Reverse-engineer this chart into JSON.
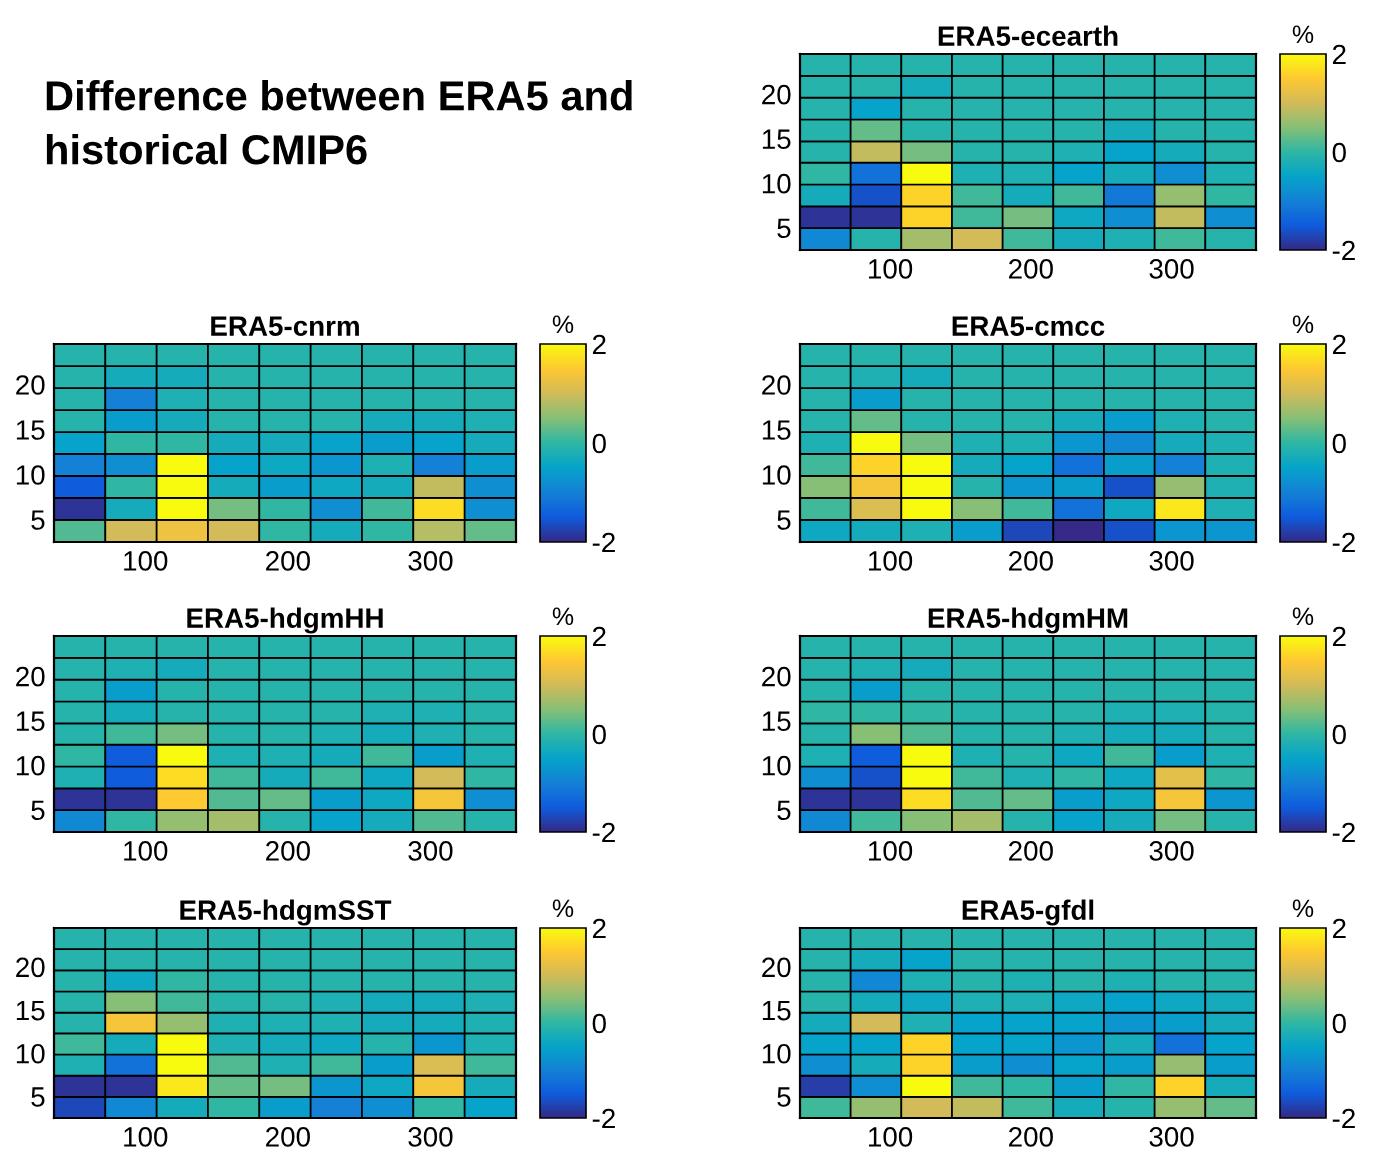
{
  "chart_data": [
    {
      "type": "other",
      "title": "Difference between ERA5 and\nhistorical CMIP6"
    },
    {
      "type": "heatmap",
      "title": "ERA5-ecearth",
      "clabel": "%",
      "x": [
        54,
        90,
        126,
        162,
        198,
        234,
        270,
        306,
        342
      ],
      "y": [
        23.3,
        20.8,
        18.4,
        15.9,
        13.5,
        11.1,
        8.6,
        6.2,
        3.7
      ],
      "xlim": [
        36,
        360
      ],
      "ylim": [
        2.5,
        24.5
      ],
      "xticks": [
        100,
        200,
        300
      ],
      "yticks": [
        5,
        10,
        15,
        20
      ],
      "clim": [
        -2,
        2
      ],
      "cticks": [
        -2,
        0,
        2
      ],
      "cells": [
        [
          -0.1,
          -0.1,
          -0.1,
          -0.1,
          -0.1,
          -0.1,
          -0.1,
          -0.1,
          -0.1
        ],
        [
          -0.1,
          -0.1,
          -0.3,
          -0.1,
          -0.1,
          -0.1,
          -0.1,
          -0.1,
          -0.1
        ],
        [
          -0.1,
          -0.5,
          -0.1,
          -0.1,
          -0.1,
          -0.1,
          -0.1,
          -0.1,
          -0.1
        ],
        [
          -0.1,
          0.3,
          -0.1,
          -0.1,
          -0.1,
          -0.1,
          -0.3,
          -0.1,
          -0.1
        ],
        [
          -0.1,
          0.9,
          0.4,
          -0.1,
          -0.1,
          -0.2,
          -0.5,
          -0.3,
          -0.1
        ],
        [
          0.0,
          -1.2,
          2.0,
          -0.2,
          -0.2,
          -0.5,
          -0.3,
          -0.8,
          -0.2
        ],
        [
          -0.3,
          -1.6,
          1.6,
          0.1,
          -0.3,
          0.1,
          -1.1,
          0.6,
          0.0
        ],
        [
          -1.9,
          -1.9,
          1.6,
          0.1,
          0.4,
          -0.4,
          -0.8,
          0.9,
          -0.8
        ],
        [
          -0.9,
          -0.1,
          0.7,
          1.0,
          0.1,
          -0.3,
          -0.2,
          0.1,
          -0.1
        ]
      ]
    },
    {
      "type": "heatmap",
      "title": "ERA5-cnrm",
      "clabel": "%",
      "x": [
        54,
        90,
        126,
        162,
        198,
        234,
        270,
        306,
        342
      ],
      "y": [
        23.3,
        20.8,
        18.4,
        15.9,
        13.5,
        11.1,
        8.6,
        6.2,
        3.7
      ],
      "xlim": [
        36,
        360
      ],
      "ylim": [
        2.5,
        24.5
      ],
      "xticks": [
        100,
        200,
        300
      ],
      "yticks": [
        5,
        10,
        15,
        20
      ],
      "clim": [
        -2,
        2
      ],
      "cticks": [
        -2,
        0,
        2
      ],
      "cells": [
        [
          -0.1,
          -0.1,
          -0.1,
          -0.1,
          -0.1,
          -0.1,
          -0.1,
          -0.1,
          -0.1
        ],
        [
          -0.1,
          -0.3,
          -0.3,
          -0.1,
          -0.1,
          -0.1,
          -0.1,
          -0.1,
          -0.1
        ],
        [
          -0.1,
          -1.0,
          -0.2,
          -0.1,
          -0.1,
          -0.1,
          -0.1,
          -0.1,
          -0.1
        ],
        [
          -0.1,
          -0.6,
          -0.3,
          -0.1,
          -0.1,
          -0.1,
          -0.3,
          -0.3,
          -0.2
        ],
        [
          -0.5,
          0.0,
          0.0,
          -0.3,
          -0.3,
          -0.5,
          -0.6,
          -0.5,
          -0.3
        ],
        [
          -1.0,
          -0.8,
          2.0,
          -0.5,
          -0.4,
          -0.7,
          -0.2,
          -1.0,
          -0.6
        ],
        [
          -1.5,
          0.0,
          2.0,
          -0.3,
          -0.6,
          -0.4,
          -0.3,
          0.9,
          -0.8
        ],
        [
          -1.9,
          -0.3,
          2.0,
          0.4,
          0.0,
          -0.8,
          0.1,
          1.7,
          -0.8
        ],
        [
          0.2,
          1.0,
          1.3,
          1.0,
          0.0,
          -0.3,
          0.0,
          0.8,
          0.3
        ]
      ]
    },
    {
      "type": "heatmap",
      "title": "ERA5-cmcc",
      "clabel": "%",
      "x": [
        54,
        90,
        126,
        162,
        198,
        234,
        270,
        306,
        342
      ],
      "y": [
        23.3,
        20.8,
        18.4,
        15.9,
        13.5,
        11.1,
        8.6,
        6.2,
        3.7
      ],
      "xlim": [
        36,
        360
      ],
      "ylim": [
        2.5,
        24.5
      ],
      "xticks": [
        100,
        200,
        300
      ],
      "yticks": [
        5,
        10,
        15,
        20
      ],
      "clim": [
        -2,
        2
      ],
      "cticks": [
        -2,
        0,
        2
      ],
      "cells": [
        [
          -0.1,
          -0.1,
          -0.1,
          -0.1,
          -0.1,
          -0.1,
          -0.1,
          -0.1,
          -0.1
        ],
        [
          -0.1,
          -0.2,
          -0.3,
          -0.1,
          -0.1,
          -0.1,
          -0.1,
          -0.1,
          -0.1
        ],
        [
          -0.1,
          -0.6,
          -0.1,
          -0.1,
          -0.1,
          -0.1,
          -0.1,
          -0.1,
          -0.1
        ],
        [
          -0.1,
          0.3,
          -0.1,
          -0.1,
          -0.1,
          -0.3,
          -0.6,
          -0.2,
          -0.1
        ],
        [
          -0.2,
          2.0,
          0.4,
          -0.2,
          -0.2,
          -0.7,
          -0.9,
          -0.3,
          -0.2
        ],
        [
          0.1,
          1.6,
          2.0,
          -0.3,
          -0.5,
          -1.2,
          -0.6,
          -1.0,
          -0.2
        ],
        [
          0.5,
          1.4,
          2.0,
          -0.1,
          -0.7,
          -0.6,
          -1.6,
          0.6,
          -0.2
        ],
        [
          0.1,
          1.1,
          2.0,
          0.5,
          0.1,
          -1.2,
          -0.4,
          1.8,
          -0.2
        ],
        [
          -0.4,
          -0.3,
          -0.2,
          -0.6,
          -1.7,
          -2.0,
          -1.6,
          -0.7,
          -0.7
        ]
      ]
    },
    {
      "type": "heatmap",
      "title": "ERA5-hdgmHH",
      "clabel": "%",
      "x": [
        54,
        90,
        126,
        162,
        198,
        234,
        270,
        306,
        342
      ],
      "y": [
        23.3,
        20.8,
        18.4,
        15.9,
        13.5,
        11.1,
        8.6,
        6.2,
        3.7
      ],
      "xlim": [
        36,
        360
      ],
      "ylim": [
        2.5,
        24.5
      ],
      "xticks": [
        100,
        200,
        300
      ],
      "yticks": [
        5,
        10,
        15,
        20
      ],
      "clim": [
        -2,
        2
      ],
      "cticks": [
        -2,
        0,
        2
      ],
      "cells": [
        [
          -0.1,
          -0.1,
          -0.1,
          -0.1,
          -0.1,
          -0.1,
          -0.1,
          -0.1,
          -0.1
        ],
        [
          -0.1,
          -0.2,
          -0.3,
          -0.1,
          -0.1,
          -0.1,
          -0.1,
          -0.1,
          -0.1
        ],
        [
          -0.1,
          -0.6,
          -0.1,
          -0.1,
          -0.1,
          -0.1,
          -0.1,
          -0.1,
          -0.1
        ],
        [
          -0.1,
          -0.3,
          -0.1,
          -0.1,
          -0.1,
          -0.1,
          -0.2,
          -0.2,
          -0.1
        ],
        [
          -0.1,
          0.1,
          0.4,
          -0.1,
          -0.1,
          -0.2,
          -0.3,
          -0.2,
          -0.1
        ],
        [
          0.0,
          -1.5,
          2.0,
          -0.2,
          -0.2,
          -0.3,
          0.1,
          -0.6,
          -0.2
        ],
        [
          -0.2,
          -1.5,
          1.7,
          0.1,
          -0.3,
          0.1,
          -0.4,
          1.0,
          0.0
        ],
        [
          -1.9,
          -1.9,
          1.5,
          0.2,
          0.3,
          -0.6,
          -0.4,
          1.4,
          -0.8
        ],
        [
          -0.9,
          0.0,
          0.6,
          0.7,
          -0.1,
          -0.5,
          -0.3,
          0.2,
          -0.1
        ]
      ]
    },
    {
      "type": "heatmap",
      "title": "ERA5-hdgmHM",
      "clabel": "%",
      "x": [
        54,
        90,
        126,
        162,
        198,
        234,
        270,
        306,
        342
      ],
      "y": [
        23.3,
        20.8,
        18.4,
        15.9,
        13.5,
        11.1,
        8.6,
        6.2,
        3.7
      ],
      "xlim": [
        36,
        360
      ],
      "ylim": [
        2.5,
        24.5
      ],
      "xticks": [
        100,
        200,
        300
      ],
      "yticks": [
        5,
        10,
        15,
        20
      ],
      "clim": [
        -2,
        2
      ],
      "cticks": [
        -2,
        0,
        2
      ],
      "cells": [
        [
          -0.1,
          -0.1,
          -0.1,
          -0.1,
          -0.1,
          -0.1,
          -0.1,
          -0.1,
          -0.1
        ],
        [
          -0.1,
          -0.2,
          -0.3,
          -0.1,
          -0.1,
          -0.1,
          -0.1,
          -0.1,
          -0.1
        ],
        [
          -0.1,
          -0.6,
          -0.1,
          -0.1,
          -0.1,
          -0.1,
          -0.1,
          -0.1,
          -0.1
        ],
        [
          0.0,
          0.0,
          0.0,
          -0.1,
          -0.1,
          -0.1,
          -0.2,
          -0.2,
          -0.1
        ],
        [
          -0.1,
          0.5,
          0.2,
          -0.1,
          -0.1,
          -0.2,
          -0.3,
          -0.3,
          -0.1
        ],
        [
          -0.2,
          -1.5,
          2.0,
          -0.2,
          -0.1,
          -0.4,
          0.1,
          -0.6,
          -0.2
        ],
        [
          -0.8,
          -1.6,
          2.0,
          0.1,
          -0.2,
          0.0,
          -0.4,
          1.2,
          0.0
        ],
        [
          -1.9,
          -1.9,
          1.7,
          0.2,
          0.3,
          -0.6,
          -0.4,
          1.4,
          -0.7
        ],
        [
          -0.9,
          0.1,
          0.5,
          0.7,
          -0.1,
          -0.5,
          -0.3,
          0.4,
          -0.1
        ]
      ]
    },
    {
      "type": "heatmap",
      "title": "ERA5-hdgmSST",
      "clabel": "%",
      "x": [
        54,
        90,
        126,
        162,
        198,
        234,
        270,
        306,
        342
      ],
      "y": [
        23.3,
        20.8,
        18.4,
        15.9,
        13.5,
        11.1,
        8.6,
        6.2,
        3.7
      ],
      "xlim": [
        36,
        360
      ],
      "ylim": [
        2.5,
        24.5
      ],
      "xticks": [
        100,
        200,
        300
      ],
      "yticks": [
        5,
        10,
        15,
        20
      ],
      "clim": [
        -2,
        2
      ],
      "cticks": [
        -2,
        0,
        2
      ],
      "cells": [
        [
          -0.1,
          -0.1,
          -0.1,
          -0.1,
          -0.1,
          -0.1,
          -0.1,
          -0.1,
          -0.1
        ],
        [
          -0.1,
          -0.1,
          -0.1,
          -0.1,
          -0.1,
          -0.1,
          -0.1,
          -0.1,
          -0.1
        ],
        [
          -0.1,
          -0.4,
          0.0,
          -0.1,
          -0.1,
          -0.1,
          -0.1,
          -0.1,
          -0.1
        ],
        [
          -0.1,
          0.5,
          0.1,
          -0.1,
          -0.1,
          -0.2,
          -0.3,
          -0.3,
          -0.2
        ],
        [
          -0.1,
          1.4,
          0.6,
          -0.2,
          -0.2,
          -0.2,
          -0.3,
          -0.3,
          -0.2
        ],
        [
          0.1,
          -0.3,
          2.0,
          -0.2,
          -0.3,
          -0.4,
          -0.1,
          -0.7,
          -0.2
        ],
        [
          -0.2,
          -1.2,
          2.0,
          0.2,
          -0.2,
          0.1,
          -0.6,
          1.1,
          0.1
        ],
        [
          -1.9,
          -1.9,
          1.8,
          0.3,
          0.4,
          -0.7,
          -0.4,
          1.4,
          -0.3
        ],
        [
          -1.7,
          -0.9,
          -0.3,
          0.0,
          -0.6,
          -1.0,
          -0.8,
          0.0,
          -0.5
        ]
      ]
    },
    {
      "type": "heatmap",
      "title": "ERA5-gfdl",
      "clabel": "%",
      "x": [
        54,
        90,
        126,
        162,
        198,
        234,
        270,
        306,
        342
      ],
      "y": [
        23.3,
        20.8,
        18.4,
        15.9,
        13.5,
        11.1,
        8.6,
        6.2,
        3.7
      ],
      "xlim": [
        36,
        360
      ],
      "ylim": [
        2.5,
        24.5
      ],
      "xticks": [
        100,
        200,
        300
      ],
      "yticks": [
        5,
        10,
        15,
        20
      ],
      "clim": [
        -2,
        2
      ],
      "cticks": [
        -2,
        0,
        2
      ],
      "cells": [
        [
          -0.1,
          -0.1,
          -0.1,
          -0.1,
          -0.1,
          -0.1,
          -0.1,
          -0.1,
          -0.1
        ],
        [
          -0.1,
          -0.3,
          -0.5,
          -0.1,
          -0.1,
          -0.1,
          -0.1,
          -0.1,
          -0.1
        ],
        [
          -0.1,
          -0.9,
          -0.2,
          -0.1,
          -0.2,
          -0.1,
          -0.2,
          -0.1,
          -0.1
        ],
        [
          -0.1,
          -0.3,
          -0.4,
          -0.2,
          -0.2,
          -0.4,
          -0.5,
          -0.4,
          -0.3
        ],
        [
          -0.3,
          1.0,
          -0.2,
          -0.5,
          -0.5,
          -0.5,
          -0.7,
          -0.6,
          -0.3
        ],
        [
          -0.5,
          -0.5,
          1.6,
          -0.5,
          -0.5,
          -0.7,
          -0.3,
          -1.2,
          -0.5
        ],
        [
          -0.8,
          -0.3,
          1.6,
          -0.6,
          -0.8,
          -0.5,
          -0.6,
          0.6,
          -0.6
        ],
        [
          -1.8,
          -0.8,
          2.0,
          0.1,
          0.0,
          -0.6,
          0.0,
          1.6,
          -0.3
        ],
        [
          0.1,
          0.6,
          1.0,
          0.9,
          0.1,
          -0.3,
          -0.1,
          0.6,
          0.3
        ]
      ]
    }
  ]
}
